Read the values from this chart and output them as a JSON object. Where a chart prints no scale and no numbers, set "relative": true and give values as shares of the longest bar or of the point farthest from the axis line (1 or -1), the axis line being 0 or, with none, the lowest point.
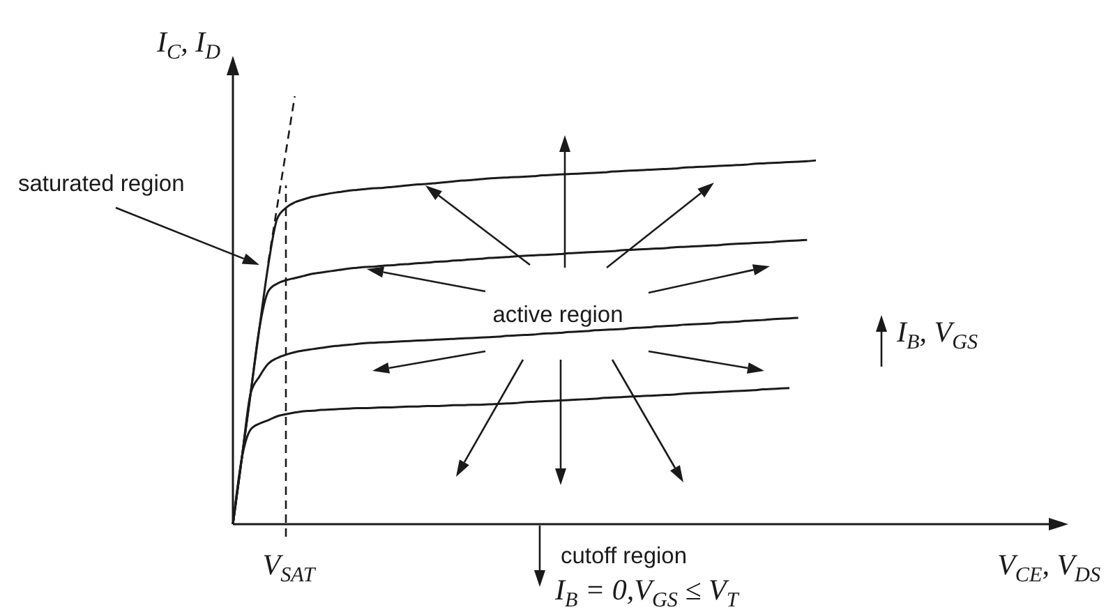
{
  "chart_data": {
    "type": "line",
    "relative": true,
    "xlabel": "V$_{CE}$, V$_{DS}$",
    "ylabel": "I$_{C}$, I$_{D}$",
    "annotations": [
      "saturated region",
      "active region",
      "cutoff region",
      "I$_{B}$ = 0,V$_{GS}$ ≤ V$_{T}$",
      "I$_{B}$, V$_{GS}$",
      "V$_{SAT}$"
    ],
    "categories": [
      null,
      null,
      null,
      null,
      null,
      null,
      null,
      null,
      null,
      null,
      null,
      null,
      null,
      null,
      null,
      null,
      null,
      null,
      null,
      null,
      null,
      null,
      null,
      null,
      null,
      null,
      null,
      null,
      null,
      null,
      null,
      null,
      null,
      null,
      null,
      null,
      null,
      null,
      null,
      null,
      null,
      null,
      null,
      null,
      null,
      null,
      null,
      null,
      null,
      null,
      null,
      null,
      null,
      null,
      null,
      null,
      null,
      null,
      null,
      null,
      null,
      null,
      null,
      null,
      null,
      null,
      null,
      null,
      null,
      null,
      null,
      null,
      null,
      null,
      null,
      null,
      null,
      null,
      null,
      null,
      null,
      null,
      null,
      null,
      null,
      null,
      null,
      null,
      null,
      null,
      null,
      null,
      null,
      null,
      null
    ],
    "series": [
      {
        "color": "#1a1a1a",
        "values": [
          0,
          0.153,
          0.305,
          0.458,
          0.605,
          0.713,
          0.739,
          0.752,
          0.759,
          0.765,
          0.769,
          0.773,
          0.776,
          0.779,
          0.781,
          0.783,
          0.785,
          0.786,
          0.788,
          0.79,
          0.792,
          0.794,
          0.795,
          0.797,
          0.799,
          0.801,
          0.803,
          0.804,
          0.806,
          0.808,
          0.809,
          0.81,
          0.811,
          0.812,
          0.813,
          0.815,
          0.816,
          0.817,
          0.818,
          0.819,
          0.82,
          0.821,
          0.822,
          0.824,
          0.825,
          0.826,
          0.827,
          0.828,
          0.829,
          0.83,
          0.831,
          0.833,
          0.834,
          0.835,
          0.836,
          0.837,
          0.838,
          0.839,
          0.84,
          0.842,
          0.843,
          0.844,
          0.845,
          0.846,
          0.847,
          0.848,
          0.85,
          null,
          null,
          null,
          null,
          null,
          null,
          null,
          null,
          null,
          null,
          null,
          null,
          null,
          null,
          null,
          null,
          null,
          null,
          null,
          null,
          null,
          null,
          null,
          null,
          null,
          null,
          null,
          null
        ]
      },
      {
        "color": "#1a1a1a",
        "values": [
          0,
          0.153,
          0.305,
          0.458,
          0.544,
          0.562,
          0.57,
          0.575,
          0.58,
          0.585,
          0.588,
          0.591,
          0.594,
          0.597,
          0.599,
          0.601,
          0.602,
          0.604,
          0.605,
          0.607,
          0.608,
          0.61,
          0.611,
          0.613,
          0.614,
          0.616,
          0.617,
          0.619,
          0.62,
          0.622,
          0.623,
          0.624,
          0.626,
          0.627,
          0.628,
          0.629,
          0.63,
          0.631,
          0.633,
          0.634,
          0.635,
          0.636,
          0.637,
          0.638,
          0.64,
          0.641,
          0.642,
          0.643,
          0.644,
          0.645,
          0.647,
          0.648,
          0.649,
          0.65,
          0.651,
          0.652,
          0.654,
          0.655,
          0.656,
          0.657,
          0.658,
          0.659,
          0.661,
          0.662,
          0.663,
          0.664,
          null,
          null,
          null,
          null,
          null,
          null,
          null,
          null,
          null,
          null,
          null,
          null,
          null,
          null,
          null,
          null,
          null,
          null,
          null,
          null,
          null,
          null,
          null,
          null,
          null,
          null,
          null,
          null,
          null
        ]
      },
      {
        "color": "#1a1a1a",
        "values": [
          0,
          0.153,
          0.305,
          0.345,
          0.375,
          0.388,
          0.396,
          0.402,
          0.406,
          0.409,
          0.412,
          0.415,
          0.417,
          0.419,
          0.421,
          0.423,
          0.424,
          0.425,
          0.426,
          0.427,
          0.428,
          0.429,
          0.43,
          0.431,
          0.432,
          0.433,
          0.434,
          0.435,
          0.436,
          0.437,
          0.438,
          0.44,
          0.441,
          0.442,
          0.443,
          0.445,
          0.446,
          0.447,
          0.449,
          0.45,
          0.451,
          0.453,
          0.454,
          0.455,
          0.456,
          0.458,
          0.459,
          0.46,
          0.462,
          0.463,
          0.464,
          0.466,
          0.467,
          0.468,
          0.469,
          0.471,
          0.472,
          0.473,
          0.475,
          0.476,
          0.477,
          0.479,
          0.48,
          0.481,
          0.482,
          null,
          null,
          null,
          null,
          null,
          null,
          null,
          null,
          null,
          null,
          null,
          null,
          null,
          null,
          null,
          null,
          null,
          null,
          null,
          null,
          null,
          null,
          null,
          null,
          null,
          null,
          null,
          null,
          null,
          null
        ]
      },
      {
        "color": "#1a1a1a",
        "values": [
          0,
          0.153,
          0.221,
          0.235,
          0.243,
          0.252,
          0.257,
          0.261,
          0.264,
          0.265,
          0.267,
          0.268,
          0.269,
          0.27,
          0.271,
          0.271,
          0.272,
          0.273,
          0.273,
          0.274,
          0.275,
          0.275,
          0.276,
          0.276,
          0.277,
          0.278,
          0.278,
          0.279,
          0.279,
          0.28,
          0.281,
          0.282,
          0.283,
          0.285,
          0.286,
          0.287,
          0.288,
          0.289,
          0.29,
          0.291,
          0.292,
          0.293,
          0.295,
          0.296,
          0.297,
          0.298,
          0.299,
          0.3,
          0.301,
          0.302,
          0.303,
          0.305,
          0.306,
          0.307,
          0.308,
          0.309,
          0.31,
          0.311,
          0.312,
          0.313,
          0.315,
          0.316,
          0.317,
          0.318,
          null,
          null,
          null,
          null,
          null,
          null,
          null,
          null,
          null,
          null,
          null,
          null,
          null,
          null,
          null,
          null,
          null,
          null,
          null,
          null,
          null,
          null,
          null,
          null,
          null,
          null,
          null,
          null,
          null,
          null,
          null
        ]
      },
      {
        "type": "line",
        "line_style": "dashed",
        "color": "#1a1a1a",
        "values": [
          null,
          null,
          null,
          null,
          0.611,
          0.741,
          0.87,
          1,
          null,
          null,
          null,
          null,
          null,
          null,
          null,
          null,
          null,
          null,
          null,
          null,
          null,
          null,
          null,
          null,
          null,
          null,
          null,
          null,
          null,
          null,
          null,
          null,
          null,
          null,
          null,
          null,
          null,
          null,
          null,
          null,
          null,
          null,
          null,
          null,
          null,
          null,
          null,
          null,
          null,
          null,
          null,
          null,
          null,
          null,
          null,
          null,
          null,
          null,
          null,
          null,
          null,
          null,
          null,
          null,
          null,
          null,
          null,
          null,
          null,
          null,
          null,
          null,
          null,
          null,
          null,
          null,
          null,
          null,
          null,
          null,
          null,
          null,
          null,
          null,
          null,
          null,
          null,
          null,
          null,
          null,
          null,
          null,
          null,
          null,
          null
        ]
      }
    ]
  }
}
